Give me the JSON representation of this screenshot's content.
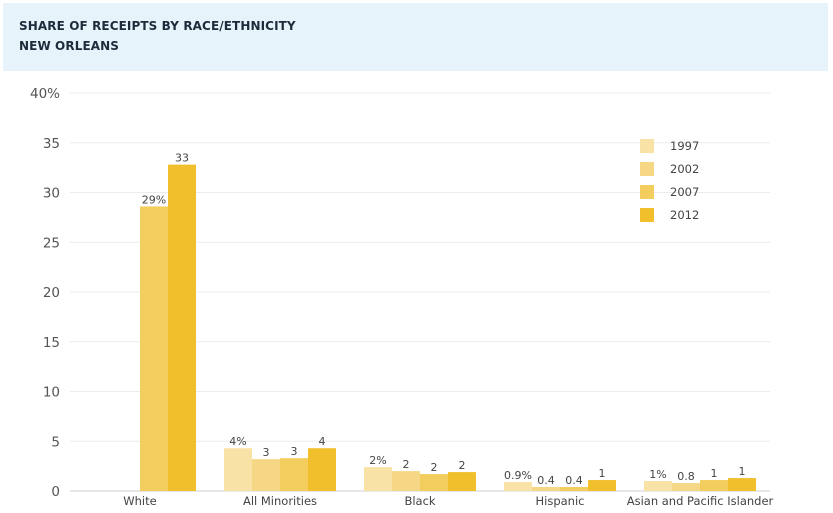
{
  "header": {
    "title": "SHARE OF RECEIPTS BY RACE/ETHNICITY",
    "subtitle": "NEW ORLEANS"
  },
  "chart_data": {
    "type": "bar",
    "categories": [
      "White",
      "All Minorities",
      "Black",
      "Hispanic",
      "Asian and Pacific Islander"
    ],
    "series": [
      {
        "name": "1997",
        "color": "#f9e2a6",
        "values": [
          null,
          4.3,
          2.4,
          0.9,
          1.0
        ]
      },
      {
        "name": "2002",
        "color": "#f5d785",
        "values": [
          null,
          3.2,
          2.0,
          0.4,
          0.8
        ]
      },
      {
        "name": "2007",
        "color": "#f3cd5e",
        "values": [
          28.6,
          3.3,
          1.7,
          0.4,
          1.1
        ]
      },
      {
        "name": "2012",
        "color": "#f0bf2b",
        "values": [
          32.8,
          4.3,
          1.9,
          1.1,
          1.3
        ]
      }
    ],
    "data_labels": [
      [
        null,
        "4%",
        "2%",
        "0.9%",
        "1%"
      ],
      [
        null,
        "3",
        "2",
        "0.4",
        "0.8"
      ],
      [
        "29%",
        "3",
        "2",
        "0.4",
        "1"
      ],
      [
        "33",
        "4",
        "2",
        "1",
        "1"
      ]
    ],
    "y_ticks": [
      "0",
      "5",
      "10",
      "15",
      "20",
      "25",
      "30",
      "35",
      "40%"
    ],
    "ylim": [
      0,
      40
    ],
    "xlabel": "",
    "ylabel": "",
    "grid": true,
    "legend_position": "top-right"
  }
}
